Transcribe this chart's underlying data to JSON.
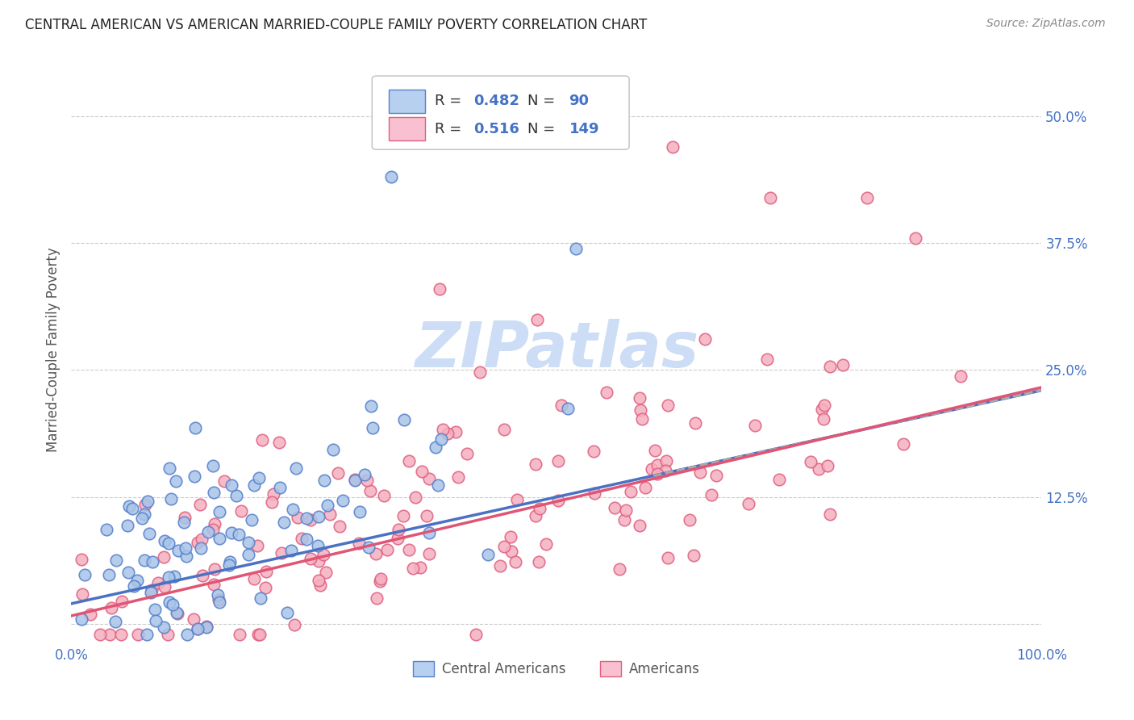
{
  "title": "CENTRAL AMERICAN VS AMERICAN MARRIED-COUPLE FAMILY POVERTY CORRELATION CHART",
  "source": "Source: ZipAtlas.com",
  "ylabel": "Married-Couple Family Poverty",
  "xlim": [
    0,
    1.0
  ],
  "ylim": [
    -0.02,
    0.56
  ],
  "yticks": [
    0.0,
    0.125,
    0.25,
    0.375,
    0.5
  ],
  "ytick_labels": [
    "",
    "12.5%",
    "25.0%",
    "37.5%",
    "50.0%"
  ],
  "xticks": [
    0.0,
    0.25,
    0.5,
    0.75,
    1.0
  ],
  "xtick_labels": [
    "0.0%",
    "",
    "",
    "",
    "100.0%"
  ],
  "blue_R": 0.482,
  "blue_N": 90,
  "pink_R": 0.516,
  "pink_N": 149,
  "blue_color": "#a8c4e8",
  "pink_color": "#f5b0c0",
  "blue_edge_color": "#5580cc",
  "pink_edge_color": "#e06080",
  "blue_line_color": "#4a72c4",
  "pink_line_color": "#e05575",
  "dashed_line_color": "#aaaaaa",
  "legend_blue_fill": "#b8d0f0",
  "legend_pink_fill": "#f8c0d0",
  "watermark_color": "#ccddf5",
  "background_color": "#ffffff",
  "grid_color": "#cccccc",
  "title_color": "#222222",
  "axis_label_color": "#555555",
  "tick_color": "#4472c4",
  "source_color": "#888888",
  "legend_text_color": "#333333",
  "legend_num_color": "#4472c4"
}
